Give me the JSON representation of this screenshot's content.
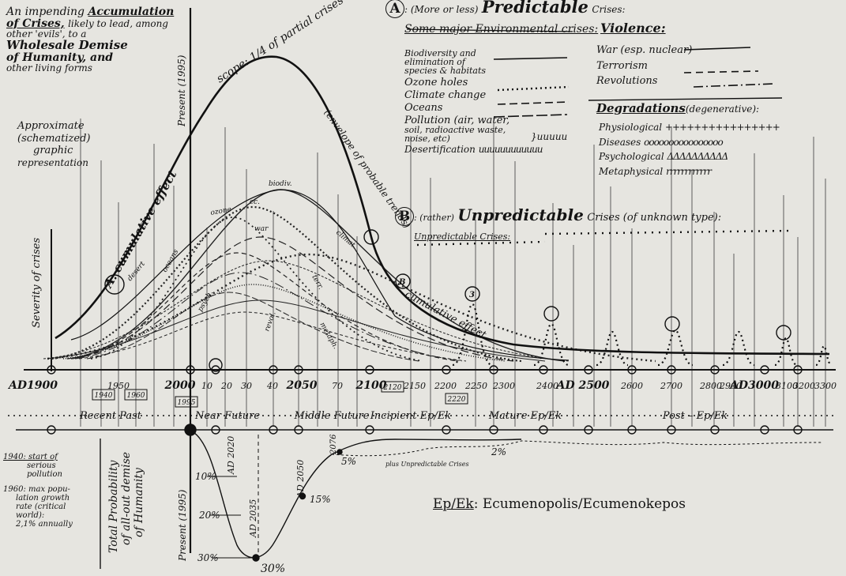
{
  "intro": {
    "line1a": "An impending",
    "line1b": "Accumulation",
    "line2a": "of Crises,",
    "line2b": "likely to lead, among",
    "line3": "other 'evils', to a",
    "line4": "Wholesale Demise",
    "line5": "of Humanity, and",
    "line6": "other living forms"
  },
  "approx": [
    "Approximate",
    "(schematized)",
    "graphic",
    "representation"
  ],
  "legend_a": {
    "title_letter": "A",
    "title_pre": ": (More or less)",
    "title_main": "Predictable",
    "title_post": "Crises:",
    "env_header": "Some major Environmental crises:",
    "env_items": [
      "Biodiversity and",
      "elimination of",
      "species & habitats",
      "Ozone holes",
      "Climate change",
      "Oceans",
      "Pollution (air, water,",
      "soil, radioactive waste,",
      "noise, etc)",
      "Desertification"
    ],
    "violence_header": "Violence:",
    "violence_items": [
      "War (esp. nuclear)",
      "Terrorism",
      "Revolutions"
    ],
    "degr_header": "Degradations",
    "degr_note": "(degenerative):",
    "degr_items": [
      "Physiological",
      "Diseases",
      "Psychological",
      "Metaphysical"
    ]
  },
  "legend_b": {
    "letter": "B",
    "pre": ": (rather)",
    "main": "Unpredictable",
    "post": "Crises (of unknown type):",
    "sub": "Unpredictable Crises:"
  },
  "chart_labels": {
    "y_axis": "Severity of crises",
    "cumulative_a": "A. cumulative effect",
    "scope": "scope: 1/4 of partial crises",
    "envelope": "(envelope of probable trends)",
    "cumulative_b": "cumulative effect",
    "present_top": "Present (1995)",
    "present_bottom": "Present (1995)",
    "curve_labels": [
      "biodiv.",
      "cc.",
      "ozone",
      "climat.",
      "war",
      "desert",
      "oceans",
      "terr.",
      "revol.",
      "metaph.",
      "psych."
    ],
    "circle_3": "3",
    "circle_b": "B"
  },
  "timeline": {
    "main_ticks": [
      "AD1900",
      "1950",
      "2000",
      "10",
      "20",
      "30",
      "40",
      "2050",
      "70",
      "2100",
      "2150",
      "2200",
      "2250",
      "2300",
      "2400",
      "AD 2500",
      "2600",
      "2700",
      "2800",
      "2900",
      "AD3000",
      "3100",
      "3200",
      "3300"
    ],
    "boxed": [
      "1940",
      "1960",
      "1995",
      "2120",
      "2220"
    ],
    "periods": [
      "Recent Past",
      "Near Future",
      "Middle Future",
      "Incipient Ep/Ek",
      "Mature Ep/Ek",
      "Post – Ep/Ek"
    ]
  },
  "bottom": {
    "notes": [
      "1940: start of",
      "serious",
      "pollution",
      "1960: max popu-",
      "lation growth",
      "rate (critical",
      "world):",
      "2,1% annually"
    ],
    "prob_label": [
      "Total Probability",
      "of all-out demise",
      "of Humanity"
    ],
    "pct": [
      "10%",
      "20%",
      "30%",
      "30%",
      "15%",
      "5%",
      "2%"
    ],
    "ad_labels": [
      "AD 2020",
      "AD 2035",
      "AD 2050",
      "2076"
    ],
    "plus_unpred": "plus Unpredictable Crises",
    "ep_abbr": "Ep/Ek",
    "ep_def_a": ": Ecumenopolis",
    "ep_def_b": "/Ecumenokepos"
  }
}
